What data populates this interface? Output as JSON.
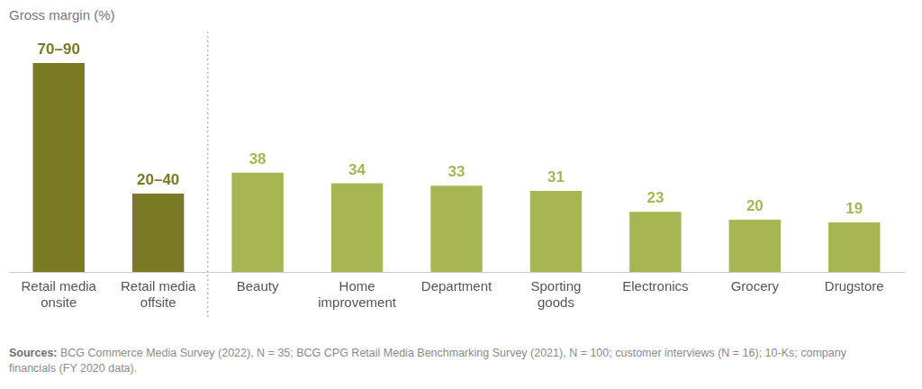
{
  "chart_data": {
    "type": "bar",
    "title": "Gross margin (%)",
    "categories": [
      "Retail media onsite",
      "Retail media offsite",
      "Beauty",
      "Home improvement",
      "Department",
      "Sporting goods",
      "Electronics",
      "Grocery",
      "Drugstore"
    ],
    "values": [
      80,
      30,
      38,
      34,
      33,
      31,
      23,
      20,
      19
    ],
    "value_labels": [
      "70–90",
      "20–40",
      "38",
      "34",
      "33",
      "31",
      "23",
      "20",
      "19"
    ],
    "colors": [
      "#7a7a26",
      "#7a7a26",
      "#a8b553",
      "#a8b553",
      "#a8b553",
      "#a8b553",
      "#a8b553",
      "#a8b553",
      "#a8b553"
    ],
    "ylim": [
      0,
      80
    ],
    "grid": false,
    "data_labels": true,
    "tick_labels": "x",
    "source_label": "Sources:",
    "source": "BCG Commerce Media Survey (2022), N = 35; BCG CPG Retail Media Benchmarking Survey (2021), N = 100; customer interviews (N = 16); 10-Ks; company financials (FY 2020 data)."
  }
}
